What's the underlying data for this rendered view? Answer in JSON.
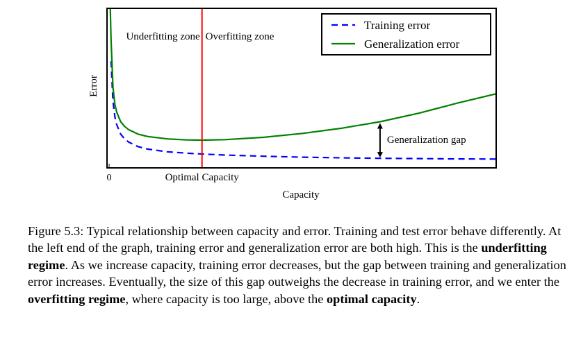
{
  "chart_data": {
    "type": "line",
    "title": "",
    "xlabel": "Capacity",
    "ylabel": "Error",
    "x_tick_labels": [
      "0"
    ],
    "xlim": [
      0,
      10
    ],
    "ylim": [
      0,
      1
    ],
    "grid": false,
    "legend_placement": "top-right",
    "series": [
      {
        "name": "Training error",
        "style": "dashed",
        "color": "#0000ff",
        "x": [
          0.05,
          0.1,
          0.15,
          0.2,
          0.3,
          0.4,
          0.5,
          0.75,
          1.0,
          1.5,
          2.0,
          2.5,
          3.0,
          4.0,
          5.0,
          6.0,
          7.0,
          8.0,
          9.0,
          10.0
        ],
        "y": [
          0.66,
          0.4,
          0.3,
          0.25,
          0.19,
          0.16,
          0.14,
          0.11,
          0.094,
          0.077,
          0.068,
          0.061,
          0.056,
          0.048,
          0.042,
          0.038,
          0.035,
          0.033,
          0.031,
          0.03
        ]
      },
      {
        "name": "Generalization error",
        "style": "solid",
        "color": "#008000",
        "x": [
          0.03,
          0.05,
          0.1,
          0.15,
          0.2,
          0.3,
          0.4,
          0.5,
          0.75,
          1.0,
          1.5,
          2.0,
          2.4,
          3.0,
          4.0,
          5.0,
          6.0,
          7.0,
          8.0,
          9.0,
          10.0
        ],
        "y": [
          1.0,
          0.8,
          0.49,
          0.38,
          0.33,
          0.27,
          0.24,
          0.22,
          0.19,
          0.175,
          0.16,
          0.153,
          0.152,
          0.155,
          0.17,
          0.195,
          0.228,
          0.27,
          0.325,
          0.39,
          0.45
        ]
      }
    ],
    "vertical_line": {
      "x": 2.4,
      "color": "#ff0000",
      "label": "Optimal Capacity"
    },
    "annotations": {
      "underfitting_zone": "Underfitting zone",
      "overfitting_zone": "Overfitting zone",
      "generalization_gap": "Generalization gap",
      "gap_x": 7.0
    }
  },
  "caption": {
    "label": "Figure 5.3:",
    "segments": [
      {
        "text": " Typical relationship between capacity and error.  Training and test error behave differently. At the left end of the graph, training error and generalization error are both high. This is the ",
        "bold": false
      },
      {
        "text": "underfitting regime",
        "bold": true
      },
      {
        "text": ". As we increase capacity, training error decreases, but the gap between training and generalization error increases. Eventually, the size of this gap outweighs the decrease in training error, and we enter the ",
        "bold": false
      },
      {
        "text": "overfitting regime",
        "bold": true
      },
      {
        "text": ", where capacity is too large, above the ",
        "bold": false
      },
      {
        "text": "optimal capacity",
        "bold": true
      },
      {
        "text": ".",
        "bold": false
      }
    ]
  }
}
